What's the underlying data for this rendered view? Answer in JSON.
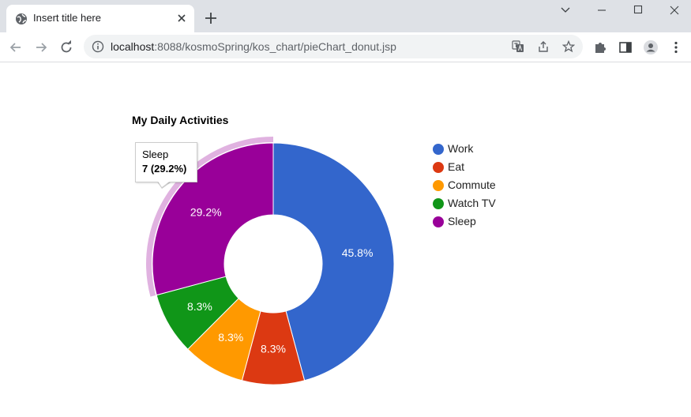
{
  "browser": {
    "tab_title": "Insert title here",
    "url_host": "localhost",
    "url_rest": ":8088/kosmoSpring/kos_chart/pieChart_donut.jsp"
  },
  "icons": {
    "favicon": "globe-icon",
    "tab_close": "close-icon",
    "new_tab": "plus-icon",
    "back": "arrow-left-icon",
    "forward": "arrow-right-icon",
    "reload": "reload-icon",
    "site_info": "info-icon",
    "translate": "translate-icon",
    "share": "share-icon",
    "bookmark": "star-icon",
    "extensions": "puzzle-icon",
    "side_panel": "side-panel-icon",
    "profile": "profile-icon",
    "menu": "kebab-menu-icon",
    "window_controls": [
      "chevron-down-icon",
      "minimize-icon",
      "maximize-icon",
      "close-icon"
    ]
  },
  "chart_data": {
    "type": "pie",
    "donut": true,
    "title": "My Daily Activities",
    "legend_position": "right",
    "slices": [
      {
        "label": "Work",
        "value": 11,
        "percent_label": "45.8%",
        "color": "#3366cc"
      },
      {
        "label": "Eat",
        "value": 2,
        "percent_label": "8.3%",
        "color": "#dc3912"
      },
      {
        "label": "Commute",
        "value": 2,
        "percent_label": "8.3%",
        "color": "#ff9900"
      },
      {
        "label": "Watch TV",
        "value": 2,
        "percent_label": "8.3%",
        "color": "#109618"
      },
      {
        "label": "Sleep",
        "value": 7,
        "percent_label": "29.2%",
        "color": "#990099"
      }
    ],
    "highlighted_slice": "Sleep",
    "tooltip": {
      "line1": "Sleep",
      "line2": "7 (29.2%)"
    }
  }
}
